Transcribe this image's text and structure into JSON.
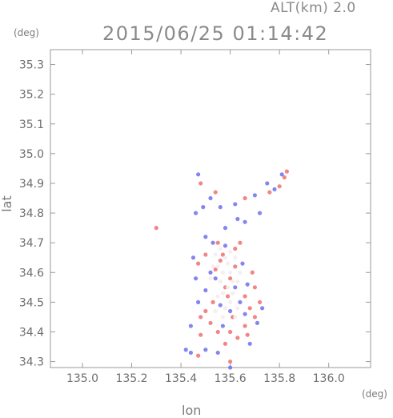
{
  "header": {
    "altitude_label": "ALT(km) 2.0",
    "timestamp": "2015/06/25 01:14:42"
  },
  "axes": {
    "x_label": "lon",
    "y_label": "lat",
    "x_unit": "(deg)",
    "y_unit": "(deg)"
  },
  "colors": {
    "frame": "#9a9a9a",
    "positive": "#f07070",
    "negative": "#7070f0",
    "light": "#f3ecee"
  },
  "chart_data": {
    "type": "scatter",
    "title": "",
    "xlabel": "lon",
    "ylabel": "lat",
    "xlim": [
      134.87,
      136.17
    ],
    "ylim": [
      34.28,
      35.35
    ],
    "xticks": [
      135.0,
      135.2,
      135.4,
      135.6,
      135.8,
      136.0
    ],
    "xtick_labels": [
      "135.0",
      "135.2",
      "135.4",
      "135.6",
      "135.8",
      "136.0"
    ],
    "yticks": [
      34.3,
      34.4,
      34.5,
      34.6,
      34.7,
      34.8,
      34.9,
      35.0,
      35.1,
      35.2,
      35.3
    ],
    "ytick_labels": [
      "34.3",
      "34.4",
      "34.5",
      "34.6",
      "34.7",
      "34.8",
      "34.9",
      "35.0",
      "35.1",
      "35.2",
      "35.3"
    ],
    "grid": false,
    "series": [
      {
        "color": "#f07070",
        "points": [
          [
            135.3,
            34.75
          ],
          [
            135.48,
            34.9
          ],
          [
            135.54,
            34.61
          ],
          [
            135.56,
            34.64
          ],
          [
            135.6,
            34.58
          ],
          [
            135.62,
            34.62
          ],
          [
            135.58,
            34.55
          ],
          [
            135.66,
            34.52
          ],
          [
            135.68,
            34.48
          ],
          [
            135.7,
            34.45
          ],
          [
            135.72,
            34.5
          ],
          [
            135.6,
            34.4
          ],
          [
            135.63,
            34.38
          ],
          [
            135.66,
            34.42
          ],
          [
            135.58,
            34.36
          ],
          [
            135.48,
            34.45
          ],
          [
            135.5,
            34.47
          ],
          [
            135.52,
            34.43
          ],
          [
            135.47,
            34.63
          ],
          [
            135.5,
            34.66
          ],
          [
            135.55,
            34.7
          ],
          [
            135.62,
            34.68
          ],
          [
            135.7,
            34.55
          ],
          [
            135.82,
            34.92
          ],
          [
            135.83,
            34.94
          ],
          [
            135.8,
            34.89
          ],
          [
            135.76,
            34.87
          ],
          [
            135.66,
            34.85
          ],
          [
            135.54,
            34.87
          ],
          [
            135.6,
            34.3
          ],
          [
            135.47,
            34.32
          ],
          [
            135.53,
            34.5
          ],
          [
            135.64,
            34.7
          ],
          [
            135.59,
            34.52
          ],
          [
            135.67,
            34.39
          ],
          [
            135.61,
            34.45
          ],
          [
            135.55,
            34.4
          ],
          [
            135.48,
            34.39
          ],
          [
            135.69,
            34.6
          ],
          [
            135.57,
            34.66
          ]
        ]
      },
      {
        "color": "#7070f0",
        "points": [
          [
            135.47,
            34.93
          ],
          [
            135.52,
            34.85
          ],
          [
            135.46,
            34.8
          ],
          [
            135.56,
            34.82
          ],
          [
            135.62,
            34.83
          ],
          [
            135.7,
            34.86
          ],
          [
            135.75,
            34.9
          ],
          [
            135.78,
            34.88
          ],
          [
            135.63,
            34.78
          ],
          [
            135.66,
            34.77
          ],
          [
            135.5,
            34.72
          ],
          [
            135.53,
            34.7
          ],
          [
            135.58,
            34.69
          ],
          [
            135.45,
            34.65
          ],
          [
            135.46,
            34.58
          ],
          [
            135.52,
            34.6
          ],
          [
            135.65,
            34.63
          ],
          [
            135.67,
            34.56
          ],
          [
            135.64,
            34.5
          ],
          [
            135.6,
            34.47
          ],
          [
            135.5,
            34.54
          ],
          [
            135.47,
            34.5
          ],
          [
            135.71,
            34.43
          ],
          [
            135.73,
            34.48
          ],
          [
            135.68,
            34.36
          ],
          [
            135.55,
            34.33
          ],
          [
            135.5,
            34.34
          ],
          [
            135.44,
            34.33
          ],
          [
            135.42,
            34.34
          ],
          [
            135.6,
            34.28
          ],
          [
            135.57,
            34.42
          ],
          [
            135.62,
            34.55
          ],
          [
            135.54,
            34.58
          ],
          [
            135.58,
            34.75
          ],
          [
            135.72,
            34.8
          ],
          [
            135.81,
            34.93
          ],
          [
            135.49,
            34.82
          ],
          [
            135.44,
            34.42
          ],
          [
            135.66,
            34.46
          ],
          [
            135.56,
            34.49
          ]
        ]
      },
      {
        "color": "#f3ecee",
        "points": [
          [
            135.55,
            34.62
          ],
          [
            135.57,
            34.6
          ],
          [
            135.59,
            34.63
          ],
          [
            135.56,
            34.57
          ],
          [
            135.6,
            34.6
          ],
          [
            135.58,
            34.65
          ],
          [
            135.54,
            34.66
          ],
          [
            135.61,
            34.57
          ],
          [
            135.57,
            34.53
          ],
          [
            135.6,
            34.5
          ],
          [
            135.63,
            34.57
          ],
          [
            135.53,
            34.62
          ],
          [
            135.62,
            34.65
          ],
          [
            135.56,
            34.68
          ],
          [
            135.59,
            34.55
          ],
          [
            135.64,
            34.6
          ],
          [
            135.52,
            34.58
          ],
          [
            135.58,
            34.48
          ],
          [
            135.55,
            34.52
          ],
          [
            135.61,
            34.53
          ],
          [
            135.63,
            34.48
          ],
          [
            135.57,
            34.45
          ],
          [
            135.6,
            34.67
          ],
          [
            135.62,
            34.45
          ],
          [
            135.54,
            34.47
          ]
        ]
      }
    ]
  }
}
